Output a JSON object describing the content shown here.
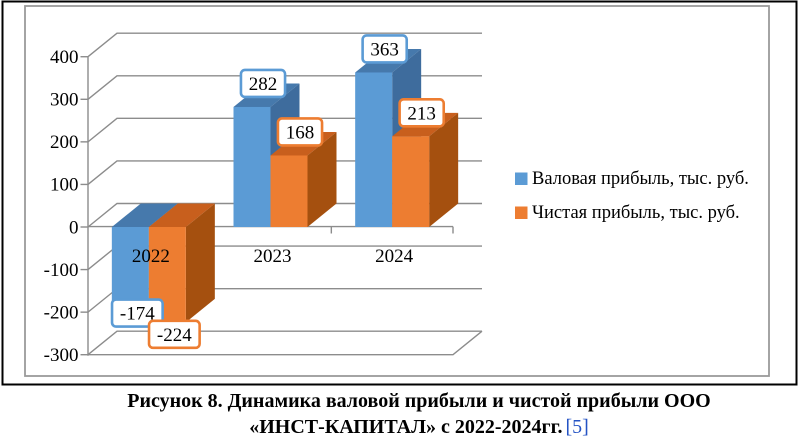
{
  "figure": {
    "caption_line1": "Рисунок 8. Динамика валовой прибыли и чистой прибыли ООО",
    "caption_line2": "«ИНСТ-КАПИТАЛ» с 2022-2024гг.",
    "citation": "[5]",
    "citation_color": "#2453C4"
  },
  "chart_data": {
    "type": "bar",
    "style": "3d-clustered-column",
    "title": "",
    "categories": [
      "2022",
      "2023",
      "2024"
    ],
    "series": [
      {
        "name": "Валовая прибыль, тыс. руб.",
        "values": [
          -174,
          282,
          363
        ],
        "color": "#5B9BD5",
        "color_top": "#4679AC",
        "color_side": "#3E6C9D"
      },
      {
        "name": "Чистая прибыль, тыс. руб.",
        "values": [
          -224,
          168,
          213
        ],
        "color": "#ED7D31",
        "color_top": "#C85F1D",
        "color_side": "#A5500F"
      }
    ],
    "ylim": [
      -300,
      400
    ],
    "ytick_step": 100,
    "ytick_labels": [
      "400",
      "300",
      "200",
      "100",
      "0",
      "-100",
      "-200",
      "-300"
    ],
    "grid": true,
    "legend_position": "right",
    "data_labels": "boxed",
    "axis_color": "#8C8C8C",
    "text_color": "#000000",
    "plot_background": "#FFFFFF"
  }
}
